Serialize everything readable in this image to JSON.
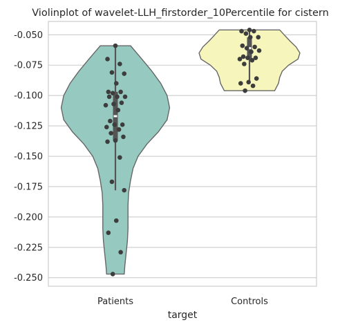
{
  "chart_data": {
    "type": "violin",
    "title": "Violinplot of wavelet-LLH_firstorder_10Percentile for cistern",
    "xlabel": "target",
    "ylabel": "",
    "categories": [
      "Patients",
      "Controls"
    ],
    "ylim": [
      -0.257,
      -0.039
    ],
    "yticks": [
      -0.05,
      -0.075,
      -0.1,
      -0.125,
      -0.15,
      -0.175,
      -0.2,
      -0.225,
      -0.25
    ],
    "ytick_labels": [
      "-0.050",
      "-0.075",
      "-0.100",
      "-0.125",
      "-0.150",
      "-0.175",
      "-0.200",
      "-0.225",
      "-0.250"
    ],
    "grid": "horizontal",
    "colors": {
      "Patients": "#96cac1",
      "Controls": "#f6f6bc"
    },
    "series": [
      {
        "name": "Patients",
        "points": [
          -0.059,
          -0.07,
          -0.074,
          -0.081,
          -0.082,
          -0.09,
          -0.097,
          -0.097,
          -0.098,
          -0.101,
          -0.101,
          -0.101,
          -0.106,
          -0.107,
          -0.108,
          -0.112,
          -0.121,
          -0.124,
          -0.124,
          -0.126,
          -0.128,
          -0.131,
          -0.134,
          -0.137,
          -0.138,
          -0.151,
          -0.171,
          -0.178,
          -0.203,
          -0.213,
          -0.229,
          -0.247
        ],
        "box": {
          "q1": -0.137,
          "median": -0.117,
          "q3": -0.097,
          "whisker_low": -0.178,
          "whisker_high": -0.059
        },
        "violin": {
          "y": [
            -0.059,
            -0.07,
            -0.08,
            -0.09,
            -0.1,
            -0.11,
            -0.12,
            -0.13,
            -0.14,
            -0.15,
            -0.16,
            -0.17,
            -0.18,
            -0.19,
            -0.2,
            -0.21,
            -0.22,
            -0.23,
            -0.24,
            -0.247
          ],
          "halfwidth": [
            0.24,
            0.42,
            0.58,
            0.72,
            0.82,
            0.86,
            0.82,
            0.68,
            0.5,
            0.36,
            0.28,
            0.24,
            0.21,
            0.2,
            0.2,
            0.2,
            0.19,
            0.17,
            0.15,
            0.14
          ]
        }
      },
      {
        "name": "Controls",
        "points": [
          -0.046,
          -0.047,
          -0.047,
          -0.049,
          -0.052,
          -0.052,
          -0.059,
          -0.06,
          -0.061,
          -0.063,
          -0.064,
          -0.068,
          -0.069,
          -0.069,
          -0.07,
          -0.071,
          -0.074,
          -0.086,
          -0.089,
          -0.09,
          -0.092,
          -0.096
        ],
        "box": {
          "q1": -0.07,
          "median": -0.061,
          "q3": -0.052,
          "whisker_low": -0.09,
          "whisker_high": -0.046
        },
        "violin": {
          "y": [
            -0.046,
            -0.05,
            -0.055,
            -0.06,
            -0.065,
            -0.07,
            -0.075,
            -0.08,
            -0.085,
            -0.09,
            -0.096
          ],
          "halfwidth": [
            0.48,
            0.55,
            0.64,
            0.74,
            0.8,
            0.77,
            0.62,
            0.52,
            0.48,
            0.46,
            0.4
          ]
        }
      }
    ]
  }
}
